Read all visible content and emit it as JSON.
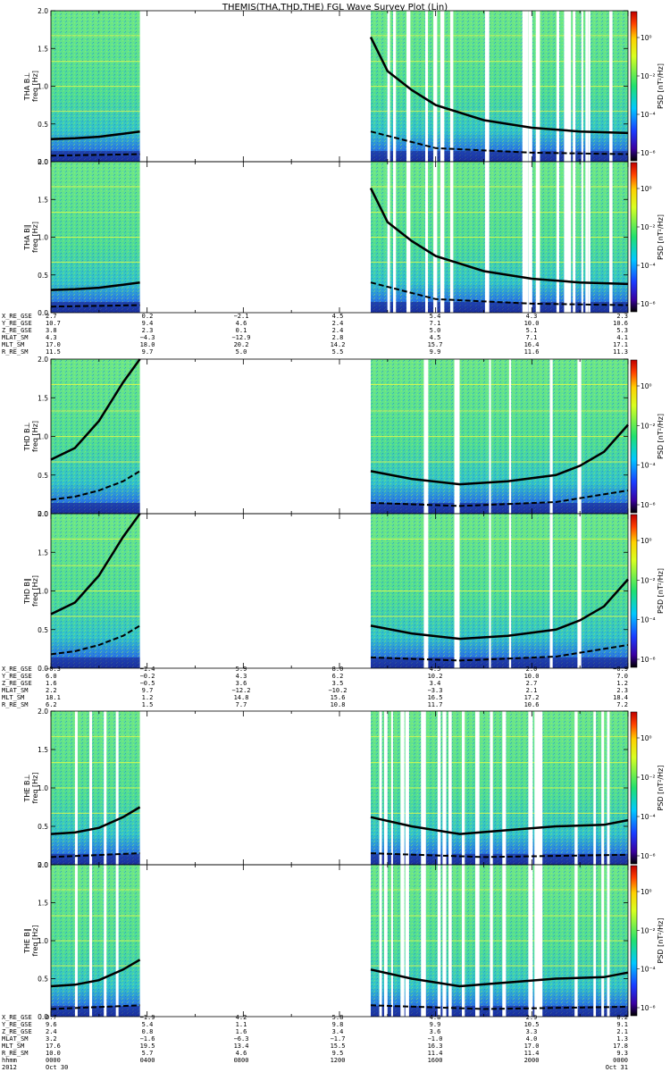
{
  "title": "THEMIS(THA,THD,THE) FGL Wave Survey Plot (Lin)",
  "colors": {
    "background": "#ffffff",
    "spectrogram_base": "#4fe08a",
    "spectrogram_low": "#2a4fd0",
    "band_line": "#ffff3a",
    "curve": "#000000",
    "gap_stripe": "#ffffff"
  },
  "colorbar": {
    "label": "PSD [nT²/Hz]",
    "ticks": [
      "10⁰",
      "10⁻²",
      "10⁻⁴",
      "10⁻⁶"
    ]
  },
  "yaxis": {
    "ticks": [
      "0.0",
      "0.5",
      "1.0",
      "1.5",
      "2.0"
    ],
    "range": [
      0,
      2
    ]
  },
  "panels": [
    {
      "probe": "THA",
      "ylabel1": "THA B⊥",
      "ylabel2": "freq [Hz]"
    },
    {
      "probe": "THA",
      "ylabel1": "THA B∥",
      "ylabel2": "freq [Hz]"
    },
    {
      "probe": "THD",
      "ylabel1": "THD B⊥",
      "ylabel2": "freq [Hz]"
    },
    {
      "probe": "THD",
      "ylabel1": "THD B∥",
      "ylabel2": "freq [Hz]"
    },
    {
      "probe": "THE",
      "ylabel1": "THE B⊥",
      "ylabel2": "freq [Hz]"
    },
    {
      "probe": "THE",
      "ylabel1": "THE B∥",
      "ylabel2": "freq [Hz]"
    }
  ],
  "ephemeris_blocks": [
    {
      "labels": [
        "X_RE_GSE",
        "Y_RE_GSE",
        "Z_RE_GSE",
        "MLAT_SM",
        "MLT_SM",
        "R_RE_SM"
      ],
      "columns": [
        [
          "2.7",
          "10.7",
          "3.8",
          "4.3",
          "17.0",
          "11.5"
        ],
        [
          "0.2",
          "9.4",
          "2.3",
          "−4.3",
          "18.0",
          "9.7"
        ],
        [
          "−2.1",
          "4.6",
          "0.1",
          "−12.9",
          "20.2",
          "5.0"
        ],
        [
          "4.5",
          "2.4",
          "2.4",
          "2.8",
          "14.2",
          "5.5"
        ],
        [
          "5.4",
          "7.1",
          "5.0",
          "4.5",
          "15.7",
          "9.9"
        ],
        [
          "4.3",
          "10.0",
          "5.1",
          "7.1",
          "16.4",
          "11.6"
        ],
        [
          "2.3",
          "10.6",
          "5.3",
          "4.1",
          "17.1",
          "11.3"
        ]
      ]
    },
    {
      "labels": [
        "X_RE_GSE",
        "Y_RE_GSE",
        "Z_RE_GSE",
        "MLAT_SM",
        "MLT_SM",
        "R_RE_SM"
      ],
      "columns": [
        [
          "−0.3",
          "6.0",
          "1.6",
          "2.2",
          "18.1",
          "6.2"
        ],
        [
          "−1.4",
          "−0.2",
          "−0.5",
          "9.7",
          "1.2",
          "1.5"
        ],
        [
          "5.9",
          "4.3",
          "3.6",
          "−12.2",
          "14.8",
          "7.7"
        ],
        [
          "8.0",
          "6.2",
          "3.5",
          "−10.2",
          "15.6",
          "10.8"
        ],
        [
          "4.5",
          "10.2",
          "3.4",
          "−3.3",
          "16.5",
          "11.7"
        ],
        [
          "2.0",
          "10.0",
          "2.7",
          "2.1",
          "17.2",
          "10.6"
        ],
        [
          "−0.9",
          "7.0",
          "1.2",
          "2.3",
          "18.4",
          "7.2"
        ]
      ]
    },
    {
      "labels": [
        "X_RE_GSE",
        "Y_RE_GSE",
        "Z_RE_GSE",
        "MLAT_SM",
        "MLT_SM",
        "R_RE_SM",
        "hhmm",
        "2012"
      ],
      "columns": [
        [
          "0.7",
          "9.6",
          "2.4",
          "3.2",
          "17.6",
          "10.0",
          "0000",
          "Oct 30"
        ],
        [
          "−1.9",
          "5.4",
          "0.8",
          "−1.6",
          "19.5",
          "5.7",
          "0400",
          ""
        ],
        [
          "4.2",
          "1.1",
          "1.6",
          "−6.3",
          "13.4",
          "4.6",
          "0800",
          ""
        ],
        [
          "5.8",
          "9.8",
          "3.4",
          "−1.7",
          "15.5",
          "9.5",
          "1200",
          ""
        ],
        [
          "4.8",
          "9.9",
          "3.6",
          "−1.0",
          "16.3",
          "11.4",
          "1600",
          ""
        ],
        [
          "2.9",
          "10.5",
          "3.3",
          "4.0",
          "17.0",
          "11.4",
          "2000",
          ""
        ],
        [
          "0.2",
          "9.1",
          "2.1",
          "1.3",
          "17.8",
          "9.3",
          "0000",
          "Oct 31"
        ]
      ]
    }
  ],
  "chart_data": {
    "type": "heatmap",
    "title": "THEMIS(THA,THD,THE) FGL Wave Survey Plot (Lin)",
    "xlabel": "hhmm",
    "xticks": [
      "0000",
      "0400",
      "0800",
      "1200",
      "1600",
      "2000",
      "0000"
    ],
    "dates": [
      "Oct 30",
      "Oct 31"
    ],
    "year": "2012",
    "ylim": [
      0,
      2
    ],
    "ylabel": "freq [Hz]",
    "colorbar_label": "PSD [nT²/Hz]",
    "data_coverage_hours": {
      "THA": [
        [
          0.0,
          3.7
        ],
        [
          13.3,
          24.0
        ]
      ],
      "THD": [
        [
          0.0,
          3.7
        ],
        [
          13.3,
          24.0
        ]
      ],
      "THE": [
        [
          0.0,
          3.7
        ],
        [
          13.3,
          24.0
        ]
      ]
    },
    "curves": {
      "THA": {
        "fcH_hours": [
          0,
          1,
          2,
          3,
          3.7,
          13.3,
          14,
          15,
          16,
          18,
          20,
          22,
          24
        ],
        "fcH": [
          0.3,
          0.31,
          0.33,
          0.37,
          0.4,
          1.65,
          1.2,
          0.95,
          0.75,
          0.55,
          0.45,
          0.4,
          0.38
        ],
        "fcHe_hours": [
          0,
          3.7,
          13.3,
          16,
          20,
          24
        ],
        "fcHe": [
          0.08,
          0.1,
          0.4,
          0.18,
          0.12,
          0.1
        ]
      },
      "THD": {
        "fcH_hours": [
          0,
          1,
          2,
          3,
          3.7,
          13.3,
          15,
          17,
          19,
          21,
          22,
          23,
          24
        ],
        "fcH": [
          0.7,
          0.85,
          1.2,
          1.7,
          2.0,
          0.55,
          0.45,
          0.38,
          0.42,
          0.5,
          0.62,
          0.8,
          1.15
        ],
        "fcHe_hours": [
          0,
          1,
          2,
          3,
          3.7,
          13.3,
          17,
          21,
          24
        ],
        "fcHe": [
          0.18,
          0.22,
          0.3,
          0.42,
          0.55,
          0.14,
          0.1,
          0.15,
          0.3
        ]
      },
      "THE": {
        "fcH_hours": [
          0,
          1,
          2,
          3,
          3.7,
          13.3,
          15,
          17,
          19,
          21,
          23,
          24
        ],
        "fcH": [
          0.4,
          0.42,
          0.48,
          0.62,
          0.75,
          0.62,
          0.5,
          0.4,
          0.45,
          0.5,
          0.52,
          0.58
        ],
        "fcHe_hours": [
          0,
          3.7,
          13.3,
          18,
          24
        ],
        "fcHe": [
          0.1,
          0.15,
          0.15,
          0.1,
          0.13
        ]
      }
    }
  }
}
